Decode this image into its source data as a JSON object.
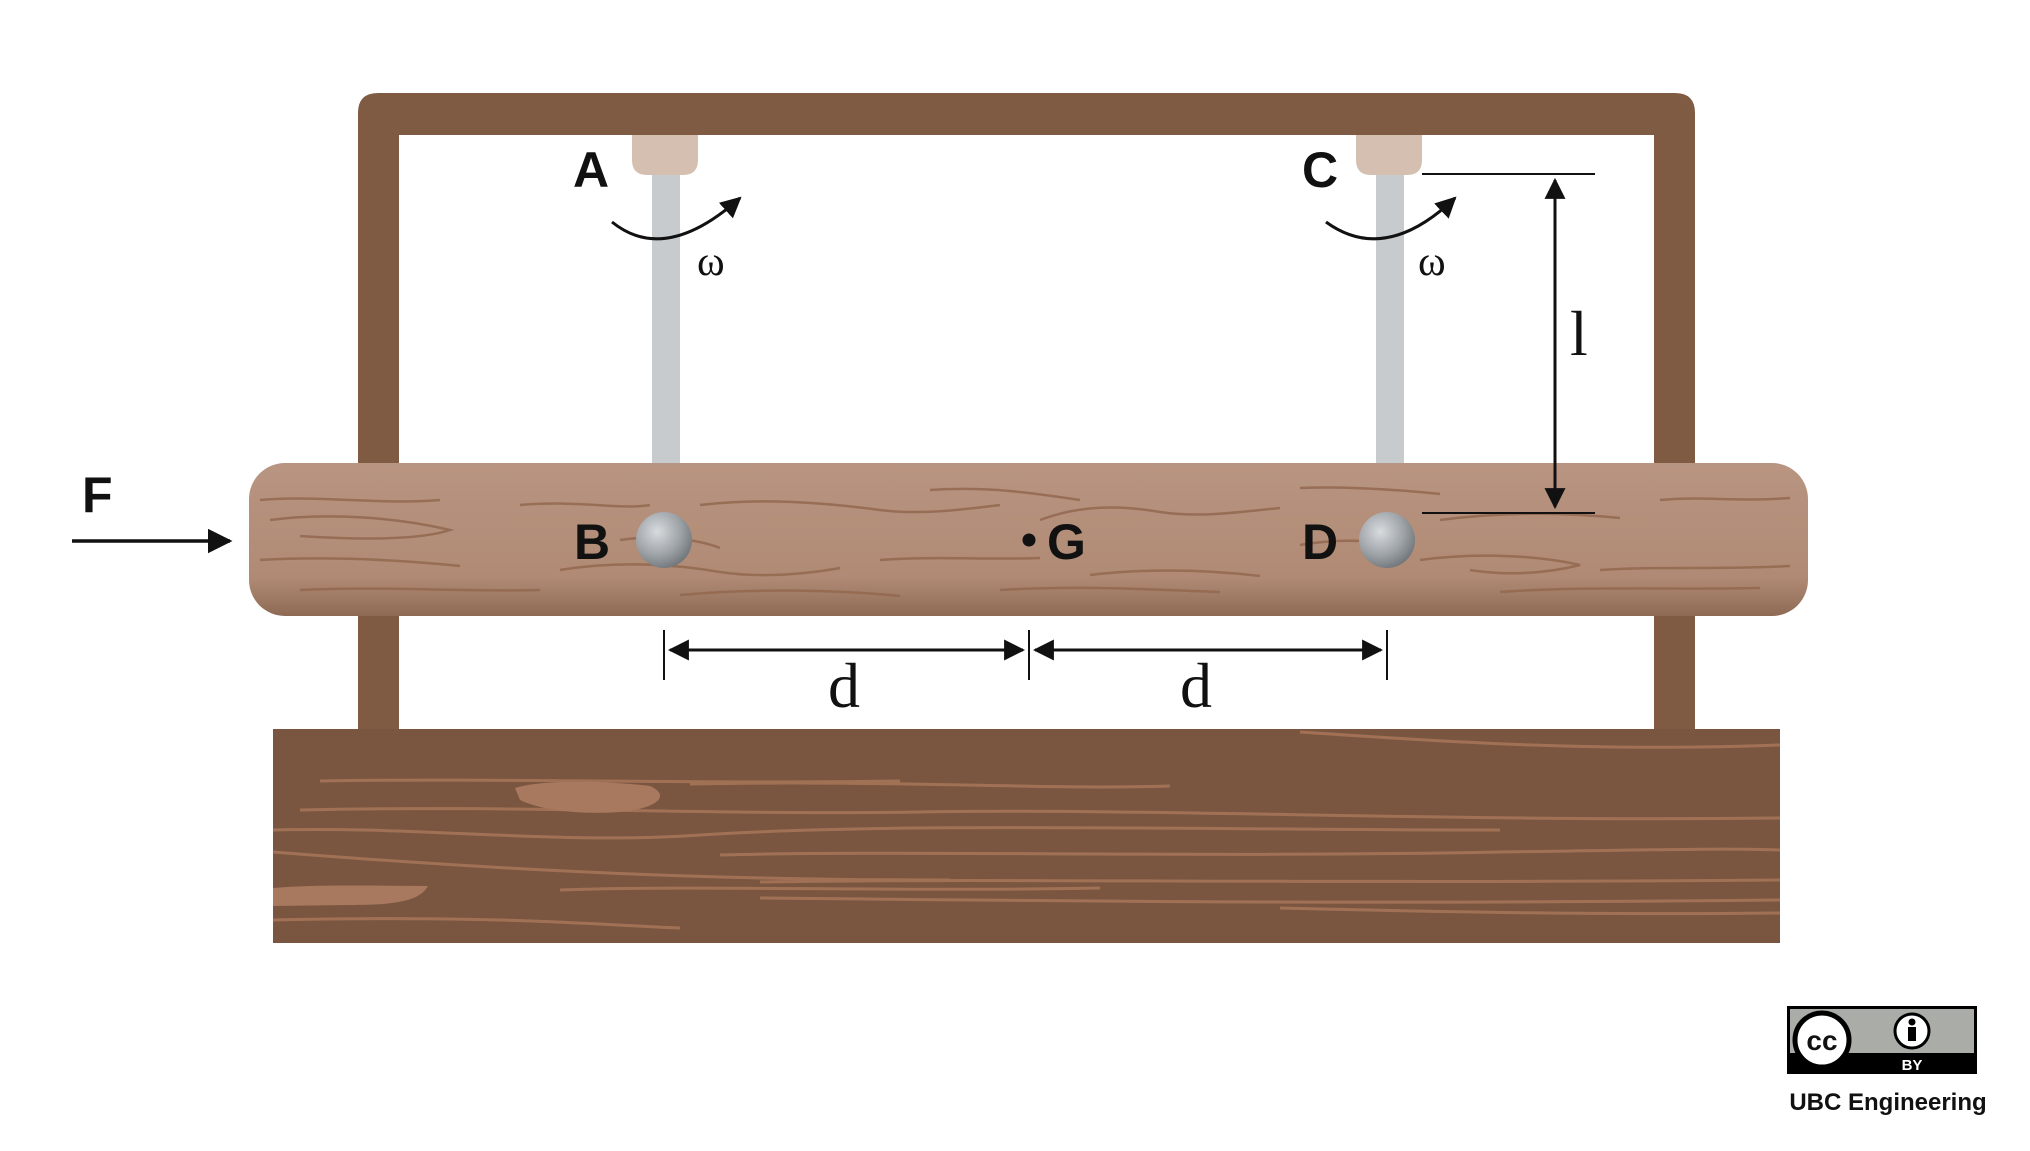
{
  "labels": {
    "pivot_a": "A",
    "pivot_c": "C",
    "end_b": "B",
    "end_d": "D",
    "center_g": "G",
    "force": "F",
    "omega_left": "ω",
    "omega_right": "ω",
    "length": "l",
    "distance_left": "d",
    "distance_right": "d"
  },
  "license": {
    "badge_cc": "cc",
    "badge_by": "BY",
    "credit": "UBC Engineering"
  },
  "colors": {
    "frame": "#7f5b43",
    "bar": "#b18b74",
    "base": "#7a5640",
    "rod": "#c7cbce",
    "pivot": "#d4bfb0"
  }
}
